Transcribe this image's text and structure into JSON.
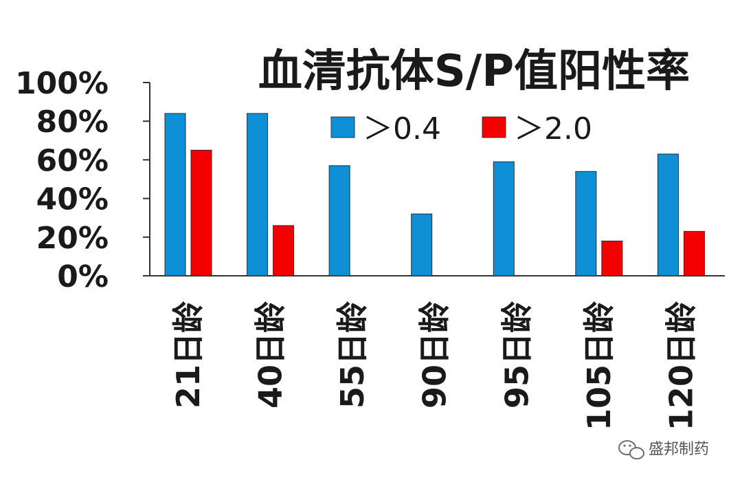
{
  "chart_data": {
    "type": "bar",
    "title": "血清抗体S/P值阳性率",
    "xlabel": "",
    "ylabel": "",
    "ylim": [
      0,
      100
    ],
    "yticks": [
      "0%",
      "20%",
      "40%",
      "60%",
      "80%",
      "100%"
    ],
    "categories": [
      "21日龄",
      "40日龄",
      "55日龄",
      "90日龄",
      "95日龄",
      "105日龄",
      "120日龄"
    ],
    "series": [
      {
        "name": "＞0.4",
        "color": "#0f8fd6",
        "values": [
          84,
          84,
          57,
          32,
          59,
          54,
          63
        ]
      },
      {
        "name": "＞2.0",
        "color": "#f40000",
        "values": [
          65,
          26,
          0,
          0,
          0,
          18,
          23
        ]
      }
    ],
    "legend_position": "top-right",
    "grid": false
  },
  "watermark": {
    "text": "盛邦制药",
    "icon": "wechat-icon"
  }
}
